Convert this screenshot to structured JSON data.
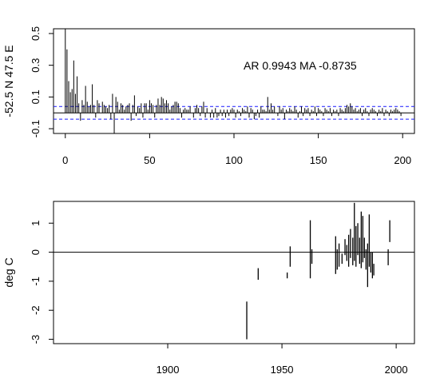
{
  "chart_data": [
    {
      "type": "bar",
      "ylabel": "-52.5 N 47.5 E",
      "annotation": "AR 0.9943  MA -0.8735",
      "xlim": [
        -7,
        207
      ],
      "ylim": [
        -0.13,
        0.53
      ],
      "x_ticks": [
        0,
        50,
        100,
        150,
        200
      ],
      "y_ticks": [
        -0.1,
        0.1,
        0.3,
        0.5
      ],
      "confidence_bands": [
        0.04,
        -0.04
      ],
      "lag_values": [
        1.0,
        0.4,
        0.2,
        0.13,
        0.15,
        0.33,
        0.12,
        0.23,
        0.06,
        -0.05,
        0.08,
        0.05,
        0.17,
        0.07,
        0.04,
        0.05,
        0.18,
        0.05,
        -0.03,
        0.08,
        0.06,
        0.0,
        0.07,
        0.05,
        0.04,
        0.03,
        0.05,
        -0.04,
        0.12,
        -0.13,
        0.1,
        0.07,
        0.02,
        0.06,
        0.05,
        0.02,
        0.04,
        0.05,
        0.06,
        -0.05,
        0.05,
        0.11,
        -0.02,
        0.04,
        0.03,
        0.06,
        -0.03,
        0.06,
        0.06,
        0.02,
        0.08,
        0.06,
        0.05,
        -0.03,
        0.05,
        0.09,
        0.05,
        0.1,
        0.09,
        0.06,
        0.08,
        0.06,
        0.02,
        0.04,
        0.05,
        0.07,
        0.07,
        0.06,
        0.03,
        -0.03,
        0.02,
        0.03,
        0.02,
        0.02,
        0.04,
        0.0,
        -0.03,
        0.03,
        0.05,
        0.03,
        -0.02,
        0.04,
        0.07,
        -0.03,
        0.03,
        0.0,
        -0.03,
        0.02,
        -0.03,
        0.03,
        -0.03,
        -0.02,
        0.02,
        -0.02,
        0.02,
        -0.03,
        0.02,
        -0.02,
        0.02,
        0.03,
        0.02,
        -0.03,
        0.02,
        0.01,
        -0.02,
        0.03,
        0.02,
        0.01,
        0.04,
        -0.03,
        0.03,
        0.02,
        -0.04,
        -0.02,
        0.02,
        -0.03,
        0.04,
        0.02,
        0.02,
        0.01,
        0.1,
        0.02,
        0.06,
        0.02,
        0.04,
        0.0,
        -0.02,
        0.04,
        0.02,
        0.03,
        -0.04,
        0.02,
        0.01,
        0.03,
        0.02,
        0.01,
        0.04,
        0.02,
        -0.03,
        0.01,
        0.04,
        -0.02,
        0.03,
        0.02,
        0.03,
        -0.02,
        0.02,
        0.01,
        0.04,
        -0.02,
        0.03,
        0.02,
        0.01,
        -0.02,
        0.03,
        0.02,
        0.01,
        0.03,
        -0.02,
        0.02,
        0.01,
        0.02,
        -0.02,
        0.03,
        0.02,
        0.01,
        0.03,
        0.05,
        0.04,
        0.06,
        0.04,
        0.02,
        0.03,
        0.01,
        0.02,
        0.03,
        -0.02,
        0.02,
        0.03,
        0.01,
        -0.02,
        0.02,
        0.03,
        0.02,
        0.01,
        -0.02,
        0.02,
        0.01,
        0.03,
        -0.02,
        0.02,
        0.01,
        -0.02,
        0.02,
        0.01,
        0.02,
        0.03,
        0.02,
        0.01,
        -0.02
      ]
    },
    {
      "type": "bar",
      "ylabel": "deg C",
      "xlim": [
        1850,
        2008
      ],
      "ylim": [
        -3.15,
        1.75
      ],
      "x_ticks": [
        1900,
        1950,
        2000
      ],
      "y_ticks": [
        -3,
        -2,
        -1,
        0,
        1
      ],
      "segments": [
        [
          1934.6,
          -3.0,
          -1.7
        ],
        [
          1939.6,
          -0.95,
          -0.55
        ],
        [
          1952.3,
          -0.9,
          -0.7
        ],
        [
          1953.6,
          -0.5,
          0.2
        ],
        [
          1962.4,
          -0.9,
          1.1
        ],
        [
          1963.1,
          -0.4,
          0.1
        ],
        [
          1973.5,
          -0.75,
          0.55
        ],
        [
          1974.2,
          -0.6,
          0.1
        ],
        [
          1975.0,
          -0.5,
          0.3
        ],
        [
          1976.3,
          -0.4,
          -0.05
        ],
        [
          1977.6,
          -0.1,
          0.45
        ],
        [
          1978.4,
          -0.3,
          0.25
        ],
        [
          1979.2,
          -0.5,
          0.6
        ],
        [
          1980.0,
          -0.2,
          0.8
        ],
        [
          1981.0,
          -0.45,
          0.5
        ],
        [
          1981.7,
          -0.3,
          1.7
        ],
        [
          1982.4,
          -0.5,
          0.9
        ],
        [
          1983.2,
          -0.1,
          1.0
        ],
        [
          1984.0,
          -0.4,
          0.5
        ],
        [
          1984.7,
          -0.55,
          1.4
        ],
        [
          1985.4,
          -0.35,
          1.25
        ],
        [
          1986.1,
          -0.2,
          0.5
        ],
        [
          1986.8,
          -0.6,
          0.1
        ],
        [
          1987.5,
          -1.2,
          0.3
        ],
        [
          1988.2,
          -0.5,
          1.3
        ],
        [
          1988.9,
          -0.7,
          0.0
        ],
        [
          1989.6,
          -0.9,
          0.0
        ],
        [
          1990.2,
          -0.8,
          -0.4
        ],
        [
          1996.5,
          -0.45,
          0.1
        ],
        [
          1997.2,
          0.35,
          1.1
        ]
      ]
    }
  ]
}
